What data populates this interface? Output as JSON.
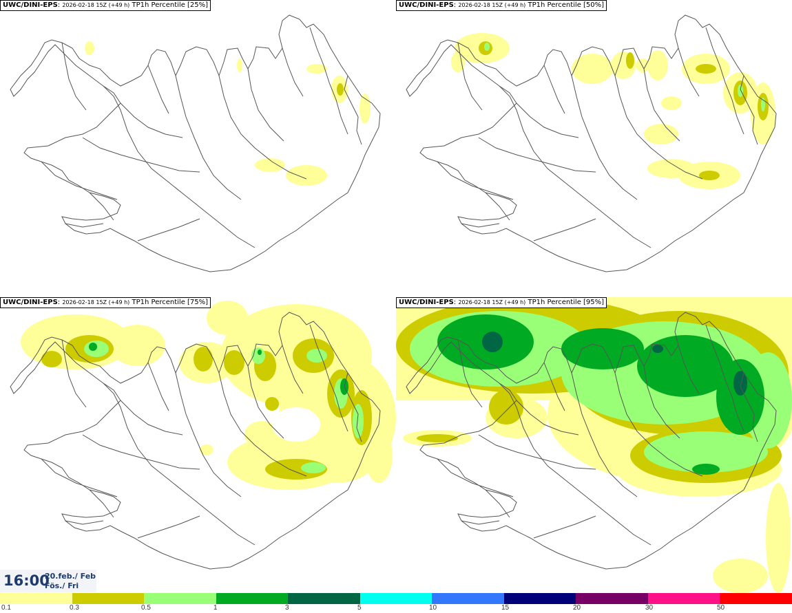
{
  "panels": [
    {
      "model": "UWC/DINI-EPS",
      "init": "2026-02-18 15Z (+49 h)",
      "product": "TP1h Percentile [25%]"
    },
    {
      "model": "UWC/DINI-EPS",
      "init": "2026-02-18 15Z (+49 h)",
      "product": "TP1h Percentile [50%]"
    },
    {
      "model": "UWC/DINI-EPS",
      "init": "2026-02-18 15Z (+49 h)",
      "product": "TP1h Percentile [75%]"
    },
    {
      "model": "UWC/DINI-EPS",
      "init": "2026-02-18 15Z (+49 h)",
      "product": "TP1h Percentile [95%]"
    }
  ],
  "valid_time": {
    "time": "16:00",
    "date_line": "20.feb./ Feb",
    "day_line": "Fös./ Fri"
  },
  "legend": {
    "colors": [
      "#ffff99",
      "#cccc00",
      "#99ff77",
      "#00aa22",
      "#006644",
      "#00ffee",
      "#3377ff",
      "#000077",
      "#770066",
      "#ff1188",
      "#ff0000"
    ],
    "labels": [
      "0.1",
      "0.3",
      "0.5",
      "1",
      "3",
      "5",
      "10",
      "15",
      "20",
      "30",
      "50"
    ]
  },
  "colors": {
    "light_yellow": "#ffff99",
    "olive": "#cccc00",
    "light_green": "#99ff77",
    "green": "#00aa22",
    "dark_green": "#006644"
  }
}
